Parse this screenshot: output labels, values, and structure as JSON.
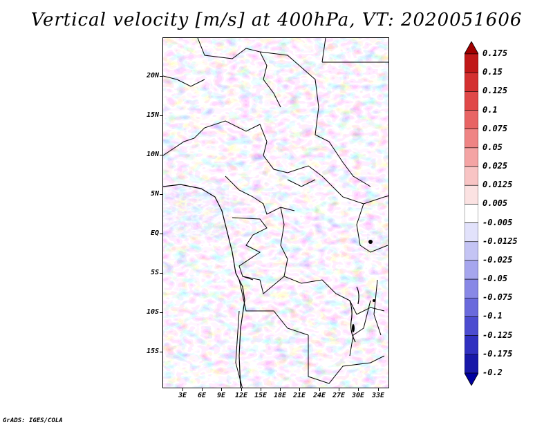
{
  "title": "Vertical velocity [m/s] at 400hPa, VT: 2020051606",
  "credit": "GrADS: IGES/COLA",
  "map": {
    "latitude_labels": [
      "20N",
      "15N",
      "10N",
      "5N",
      "EQ",
      "5S",
      "10S",
      "15S"
    ],
    "longitude_labels": [
      "3E",
      "6E",
      "9E",
      "12E",
      "15E",
      "18E",
      "21E",
      "24E",
      "27E",
      "30E",
      "33E"
    ],
    "field": "vertical velocity",
    "level": "400hPa"
  },
  "colorbar": {
    "labels": [
      "0.175",
      "0.15",
      "0.125",
      "0.1",
      "0.075",
      "0.05",
      "0.025",
      "0.0125",
      "0.005",
      "-0.005",
      "-0.0125",
      "-0.025",
      "-0.05",
      "-0.075",
      "-0.1",
      "-0.125",
      "-0.175",
      "-0.2"
    ],
    "colors": [
      "#a00000",
      "#c01818",
      "#d43030",
      "#e04848",
      "#e86464",
      "#ef8484",
      "#f4a4a4",
      "#f8c4c4",
      "#fbe2e2",
      "#ffffff",
      "#e2e2fb",
      "#c4c4f4",
      "#a6a6ee",
      "#8888e6",
      "#6a6adc",
      "#4c4cd0",
      "#3030c0",
      "#1818a8",
      "#0000a0"
    ]
  }
}
